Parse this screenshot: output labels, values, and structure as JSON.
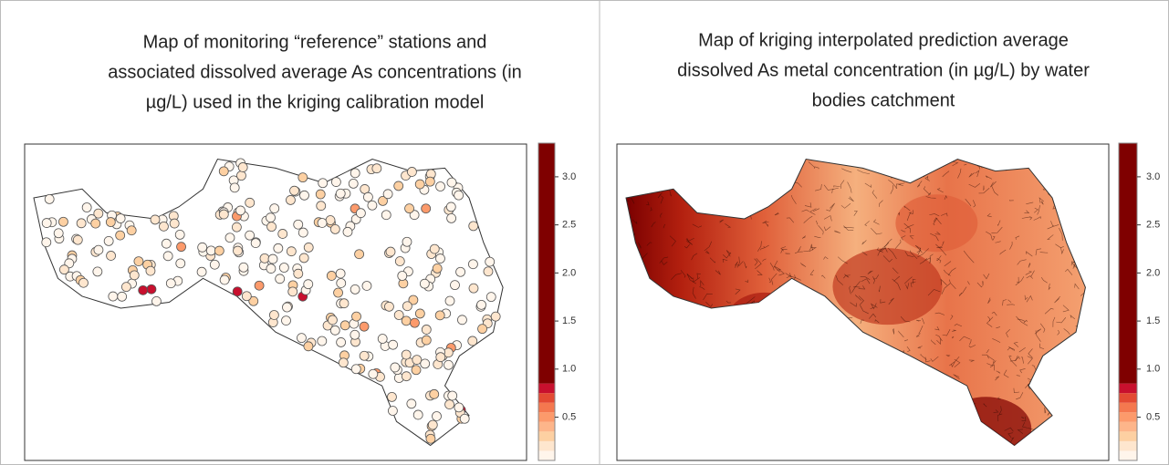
{
  "panels": [
    {
      "title_lines": [
        "Map of monitoring “reference” stations and",
        "associated dissolved average As concentrations (in",
        "µg/L) used in the kriging calibration model"
      ]
    },
    {
      "title_lines": [
        "Map of kriging interpolated prediction average",
        "dissolved As metal concentration (in µg/L) by water",
        "bodies catchment"
      ]
    }
  ],
  "colorbar": {
    "lim": [
      0.05,
      3.35
    ],
    "ticks": [
      0.5,
      {
        "value": 1,
        "label": "1.0"
      },
      1.5,
      {
        "value": 2,
        "label": "2.0"
      },
      2.5,
      {
        "value": 3,
        "label": "3.0"
      }
    ],
    "breaks": [
      0.05,
      0.15,
      0.25,
      0.35,
      0.45,
      0.55,
      0.65,
      0.75,
      0.85,
      3.35
    ],
    "colors": [
      "#fff5eb",
      "#fee6ce",
      "#fdd0a2",
      "#fdb58a",
      "#fc9a6b",
      "#f4784f",
      "#e34a33",
      "#c8102e",
      "#7f0000"
    ]
  }
}
